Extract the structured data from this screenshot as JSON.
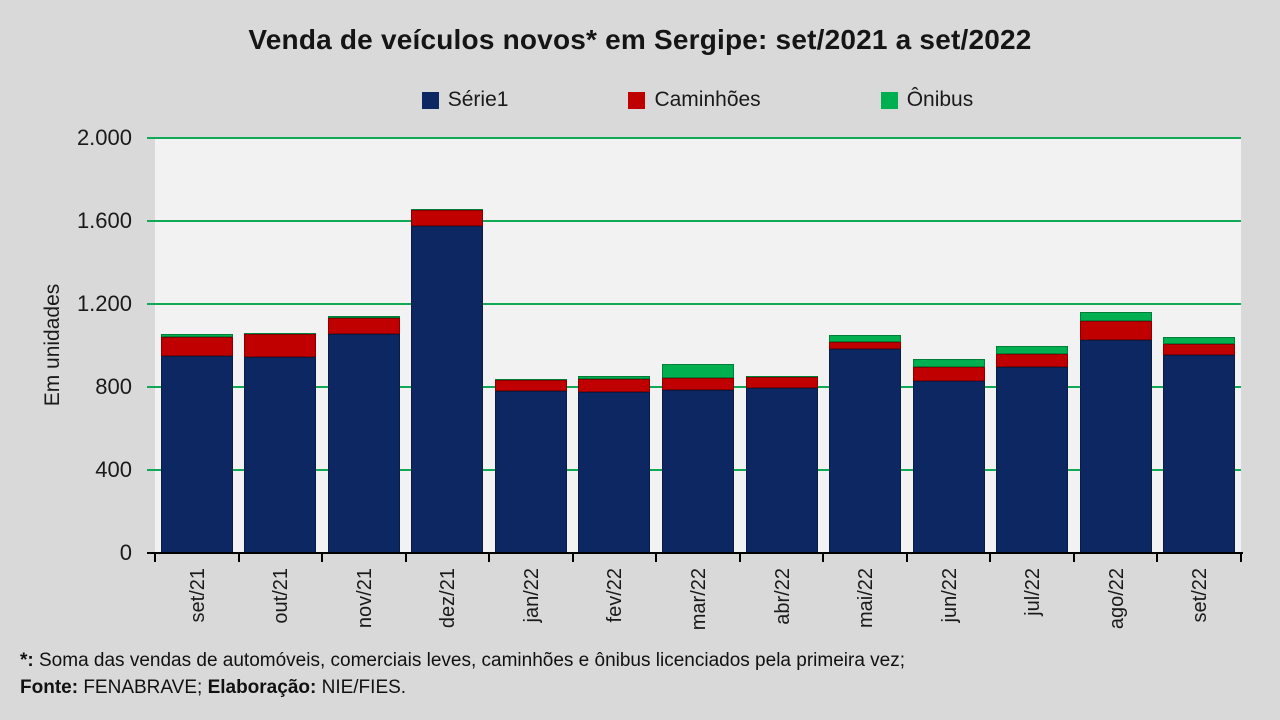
{
  "title": "Venda de veículos novos* em Sergipe: set/2021 a set/2022",
  "colors": {
    "page_background": "#d9d9d9",
    "plot_background": "#f2f2f2",
    "gridline_green": "#10a956",
    "axis_black": "#000000",
    "serie1_navy": "#0d2763",
    "caminhoes_red": "#c00000",
    "onibus_green": "#00b050"
  },
  "chart_data": {
    "type": "bar",
    "stacked": true,
    "title": "Venda de veículos novos* em Sergipe: set/2021 a set/2022",
    "ylabel": "Em unidades",
    "xlabel": "",
    "ylim": [
      0,
      2000
    ],
    "ytick_step": 400,
    "ytick_values": [
      0,
      400,
      800,
      1200,
      1600,
      2000
    ],
    "ytick_labels": [
      "0",
      "400",
      "800",
      "1.200",
      "1.600",
      "2.000"
    ],
    "grid": true,
    "legend_position": "top",
    "categories": [
      "set/21",
      "out/21",
      "nov/21",
      "dez/21",
      "jan/22",
      "fev/22",
      "mar/22",
      "abr/22",
      "mai/22",
      "jun/22",
      "jul/22",
      "ago/22",
      "set/22"
    ],
    "series": [
      {
        "name": "Série1",
        "color": "#0d2763",
        "values": [
          950,
          945,
          1055,
          1575,
          780,
          778,
          785,
          795,
          985,
          830,
          895,
          1025,
          955
        ]
      },
      {
        "name": "Caminhões",
        "color": "#c00000",
        "values": [
          90,
          112,
          77,
          80,
          52,
          60,
          57,
          51,
          30,
          66,
          63,
          92,
          50
        ]
      },
      {
        "name": "Ônibus",
        "color": "#00b050",
        "values": [
          15,
          5,
          10,
          3,
          7,
          15,
          68,
          5,
          35,
          40,
          40,
          45,
          35
        ]
      }
    ]
  },
  "footnote": {
    "line1_bold": "*:",
    "line1_text": " Soma das vendas de automóveis, comerciais leves, caminhões e ônibus licenciados pela primeira vez;",
    "line2_bold1": "Fonte:",
    "line2_text1": " FENABRAVE; ",
    "line2_bold2": "Elaboração:",
    "line2_text2": " NIE/FIES."
  }
}
